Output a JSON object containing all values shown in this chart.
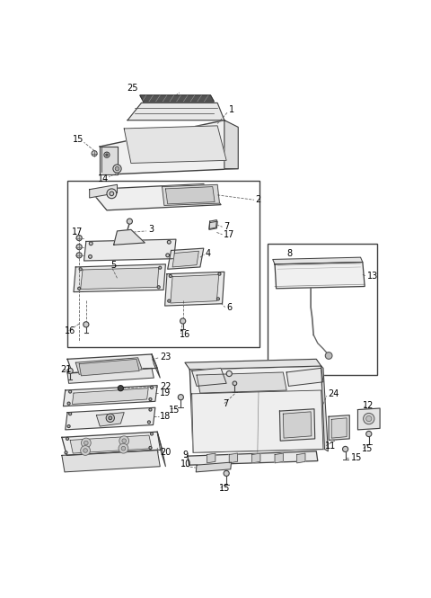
{
  "background_color": "#ffffff",
  "line_color": "#404040",
  "fill_color": "#f5f5f5",
  "fig_width": 4.8,
  "fig_height": 6.65,
  "dpi": 100
}
